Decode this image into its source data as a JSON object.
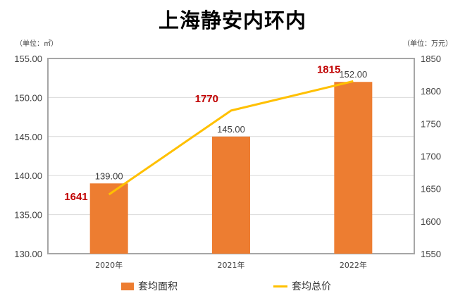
{
  "title": "上海静安内环内",
  "units": {
    "left": "（单位：㎡）",
    "right": "（单位：万元）"
  },
  "colors": {
    "bar": "#ED7D31",
    "line": "#FFC000",
    "price_label": "#C00000",
    "axis": "#A6A6A6",
    "grid": "#D9D9D9"
  },
  "legend": [
    {
      "label": "套均面积",
      "type": "bar"
    },
    {
      "label": "套均总价",
      "type": "line"
    }
  ],
  "chart_data": {
    "type": "bar+line",
    "title": "上海静安内环内",
    "categories": [
      "2020年",
      "2021年",
      "2022年"
    ],
    "series": [
      {
        "name": "套均面积",
        "type": "bar",
        "axis": "left",
        "unit": "㎡",
        "values": [
          139.0,
          145.0,
          152.0
        ],
        "labels": [
          "139.00",
          "145.00",
          "152.00"
        ]
      },
      {
        "name": "套均总价",
        "type": "line",
        "axis": "right",
        "unit": "万元",
        "values": [
          1641,
          1770,
          1815
        ],
        "labels": [
          "1641",
          "1770",
          "1815"
        ]
      }
    ],
    "left_axis": {
      "label": "（单位：㎡）",
      "min": 130,
      "max": 155,
      "ticks": [
        "130.00",
        "135.00",
        "140.00",
        "145.00",
        "150.00",
        "155.00"
      ]
    },
    "right_axis": {
      "label": "（单位：万元）",
      "min": 1550,
      "max": 1850,
      "ticks": [
        "1550",
        "1600",
        "1650",
        "1700",
        "1750",
        "1800",
        "1850"
      ]
    },
    "grid": true,
    "legend_position": "bottom"
  }
}
